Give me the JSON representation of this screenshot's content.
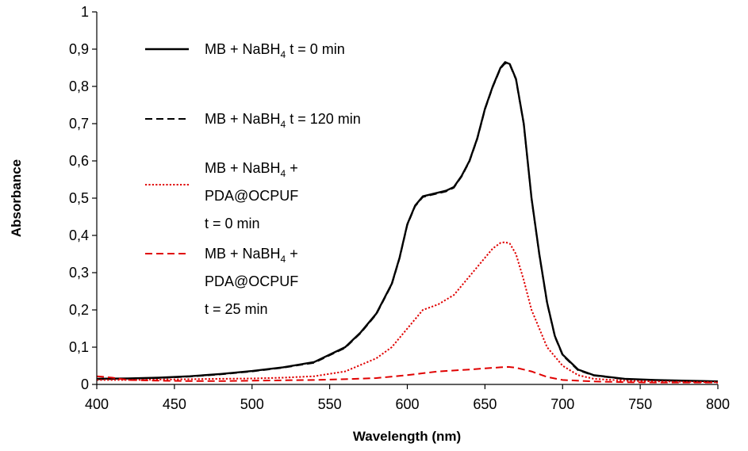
{
  "chart_data": {
    "type": "line",
    "xlabel": "Wavelength (nm)",
    "ylabel": "Absorbance",
    "xlim": [
      400,
      800
    ],
    "ylim": [
      0,
      1
    ],
    "x_ticks": [
      "400",
      "450",
      "500",
      "550",
      "600",
      "650",
      "700",
      "750",
      "800"
    ],
    "y_ticks": [
      "0",
      "0,1",
      "0,2",
      "0,3",
      "0,4",
      "0,5",
      "0,6",
      "0,7",
      "0,8",
      "0,9",
      "1"
    ],
    "grid": false,
    "legend_position": "top-left",
    "series": [
      {
        "name": "MB + NaBH4 t = 0 min",
        "legend_lines": [
          "MB + NaBH",
          "4",
          " t = 0 min"
        ],
        "color": "#000000",
        "dash": "solid",
        "x": [
          400,
          420,
          440,
          460,
          480,
          500,
          520,
          540,
          560,
          570,
          580,
          590,
          595,
          600,
          605,
          610,
          615,
          620,
          625,
          630,
          635,
          640,
          645,
          650,
          655,
          660,
          663,
          666,
          670,
          675,
          680,
          685,
          690,
          695,
          700,
          710,
          720,
          740,
          760,
          780,
          800
        ],
        "y": [
          0.015,
          0.016,
          0.018,
          0.022,
          0.028,
          0.036,
          0.046,
          0.06,
          0.1,
          0.14,
          0.19,
          0.27,
          0.34,
          0.43,
          0.48,
          0.505,
          0.51,
          0.515,
          0.52,
          0.53,
          0.56,
          0.6,
          0.66,
          0.74,
          0.8,
          0.85,
          0.865,
          0.86,
          0.82,
          0.7,
          0.5,
          0.35,
          0.22,
          0.13,
          0.08,
          0.04,
          0.025,
          0.015,
          0.012,
          0.01,
          0.008
        ]
      },
      {
        "name": "MB + NaBH4 t = 120 min",
        "legend_lines": [
          "MB + NaBH",
          "4",
          " t = 120 min"
        ],
        "color": "#000000",
        "dash": "dashed",
        "x": [
          400,
          420,
          440,
          460,
          480,
          500,
          520,
          540,
          560,
          570,
          580,
          590,
          595,
          600,
          605,
          610,
          615,
          620,
          625,
          630,
          635,
          640,
          645,
          650,
          655,
          660,
          663,
          666,
          670,
          675,
          680,
          685,
          690,
          695,
          700,
          710,
          720,
          740,
          760,
          780,
          800
        ],
        "y": [
          0.014,
          0.015,
          0.017,
          0.021,
          0.027,
          0.035,
          0.045,
          0.058,
          0.098,
          0.138,
          0.188,
          0.268,
          0.338,
          0.428,
          0.478,
          0.503,
          0.508,
          0.513,
          0.518,
          0.528,
          0.558,
          0.598,
          0.658,
          0.738,
          0.798,
          0.848,
          0.862,
          0.858,
          0.818,
          0.698,
          0.498,
          0.348,
          0.218,
          0.128,
          0.078,
          0.038,
          0.024,
          0.014,
          0.011,
          0.009,
          0.007
        ]
      },
      {
        "name": "MB + NaBH4 + PDA@OCPUF t = 0 min",
        "legend_lines": [
          "MB + NaBH",
          "4",
          " + ",
          "PDA@OCPUF",
          "t = 0 min"
        ],
        "color": "#e00000",
        "dash": "dotted",
        "x": [
          400,
          420,
          440,
          460,
          480,
          500,
          520,
          540,
          560,
          580,
          590,
          600,
          610,
          620,
          630,
          640,
          650,
          655,
          660,
          663,
          666,
          670,
          675,
          680,
          690,
          700,
          710,
          720,
          740,
          760,
          780,
          800
        ],
        "y": [
          0.012,
          0.012,
          0.013,
          0.014,
          0.015,
          0.016,
          0.018,
          0.022,
          0.035,
          0.07,
          0.1,
          0.15,
          0.2,
          0.215,
          0.24,
          0.29,
          0.34,
          0.365,
          0.38,
          0.382,
          0.378,
          0.35,
          0.28,
          0.2,
          0.1,
          0.05,
          0.025,
          0.015,
          0.01,
          0.008,
          0.007,
          0.006
        ]
      },
      {
        "name": "MB + NaBH4 + PDA@OCPUF t = 25 min",
        "legend_lines": [
          "MB + NaBH",
          "4",
          " + ",
          "PDA@OCPUF",
          "t = 25 min"
        ],
        "color": "#e00000",
        "dash": "dashed",
        "x": [
          400,
          410,
          420,
          440,
          460,
          480,
          500,
          520,
          540,
          560,
          580,
          600,
          610,
          620,
          640,
          650,
          660,
          665,
          670,
          680,
          690,
          700,
          720,
          740,
          760,
          780,
          800
        ],
        "y": [
          0.022,
          0.018,
          0.012,
          0.01,
          0.009,
          0.009,
          0.01,
          0.011,
          0.012,
          0.014,
          0.017,
          0.025,
          0.03,
          0.035,
          0.04,
          0.043,
          0.046,
          0.047,
          0.045,
          0.035,
          0.02,
          0.012,
          0.008,
          0.006,
          0.005,
          0.005,
          0.005
        ]
      }
    ]
  }
}
